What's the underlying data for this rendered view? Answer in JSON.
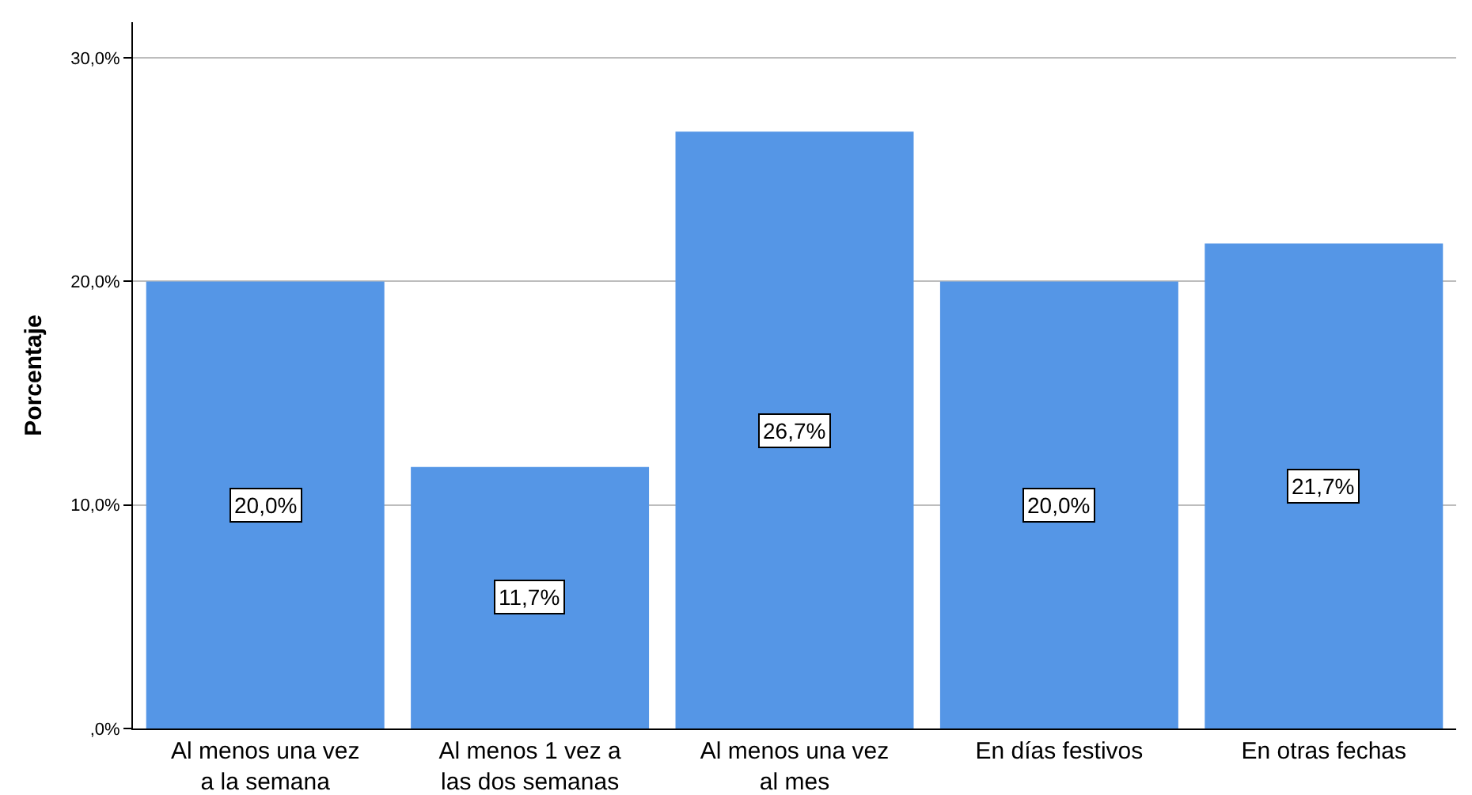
{
  "chart_data": {
    "type": "bar",
    "ylabel": "Porcentaje",
    "categories": [
      "Al menos una vez\na la semana",
      "Al menos 1 vez a\nlas dos semanas",
      "Al menos una vez\nal mes",
      "En días festivos",
      "En otras fechas"
    ],
    "values": [
      20.0,
      11.7,
      26.7,
      20.0,
      21.7
    ],
    "value_labels": [
      "20,0%",
      "11,7%",
      "26,7%",
      "20,0%",
      "21,7%"
    ],
    "color": "#5596e6",
    "ylim": [
      0,
      31.6
    ],
    "yticks": [
      {
        "value": 0,
        "label": ",0%"
      },
      {
        "value": 10,
        "label": "10,0%"
      },
      {
        "value": 20,
        "label": "20,0%"
      },
      {
        "value": 30,
        "label": "30,0%"
      }
    ],
    "grid": "y",
    "legend": false
  }
}
